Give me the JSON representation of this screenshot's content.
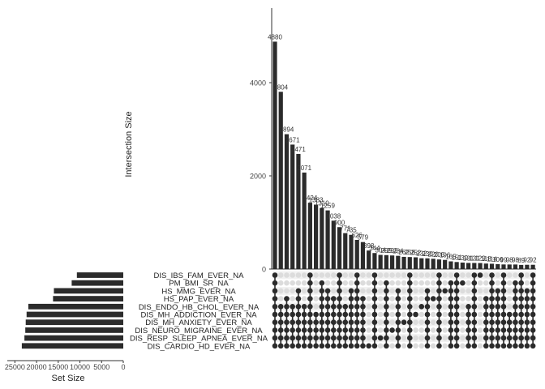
{
  "chart_data": {
    "type": "bar",
    "title": "",
    "intersection_ylabel": "Intersection Size",
    "set_size_xlabel": "Set Size",
    "intersection_yticks": [
      0,
      2000,
      4000
    ],
    "intersection_ylim": [
      0,
      5600
    ],
    "set_size_xticks": [
      25000,
      20000,
      15000,
      10000,
      5000,
      0
    ],
    "set_size_xlim": [
      0,
      26000
    ],
    "bar_color": "#2b2b2b",
    "sets": [
      {
        "name": "DIS_IBS_FAM_EVER_NA",
        "size": 10700
      },
      {
        "name": "PM_BMI_SR_NA",
        "size": 11900
      },
      {
        "name": "HS_MMG_EVER_NA",
        "size": 16000
      },
      {
        "name": "HS_PAP_EVER_NA",
        "size": 16200
      },
      {
        "name": "DIS_ENDO_HB_CHOL_EVER_NA",
        "size": 21900
      },
      {
        "name": "DIS_MH_ADDICTION_EVER_NA",
        "size": 22300
      },
      {
        "name": "DIS_MH_ANXIETY_EVER_NA",
        "size": 22500
      },
      {
        "name": "DIS_NEURO_MIGRAINE_EVER_NA",
        "size": 22600
      },
      {
        "name": "DIS_RESP_SLEEP_APNEA_EVER_NA",
        "size": 22800
      },
      {
        "name": "DIS_CARDIO_HD_EVER_NA",
        "size": 23400
      }
    ],
    "intersections": [
      {
        "label": "4880",
        "value": 4880,
        "sets": [
          0,
          1,
          2,
          3,
          4,
          5,
          6,
          7,
          8,
          9
        ]
      },
      {
        "label": "3804",
        "value": 3804,
        "sets": [
          4,
          5,
          6,
          7,
          8,
          9
        ]
      },
      {
        "label": "2894",
        "value": 2894,
        "sets": [
          3,
          4,
          5,
          6,
          7,
          8,
          9
        ]
      },
      {
        "label": "2671",
        "value": 2671,
        "sets": [
          4,
          5,
          6,
          7,
          8,
          9
        ]
      },
      {
        "label": "2471",
        "value": 2471,
        "sets": [
          2,
          3,
          4,
          5,
          6,
          7,
          8,
          9
        ]
      },
      {
        "label": "2071",
        "value": 2071,
        "sets": [
          4,
          5,
          6,
          7,
          8,
          9
        ]
      },
      {
        "label": "1424",
        "value": 1424,
        "sets": [
          0,
          1,
          2,
          3,
          4,
          5,
          6,
          7,
          8,
          9
        ]
      },
      {
        "label": "1383",
        "value": 1383,
        "sets": [
          5,
          6,
          7,
          8,
          9
        ]
      },
      {
        "label": "1310",
        "value": 1310,
        "sets": [
          1,
          2,
          3,
          4,
          5,
          6,
          7,
          8,
          9
        ]
      },
      {
        "label": "1259",
        "value": 1259,
        "sets": [
          2,
          3,
          4,
          5,
          6,
          7,
          8,
          9
        ]
      },
      {
        "label": "1038",
        "value": 1038,
        "sets": [
          3,
          4,
          5,
          6,
          7,
          8,
          9
        ]
      },
      {
        "label": "900",
        "value": 900,
        "sets": [
          0,
          1,
          2,
          3,
          4,
          5,
          6,
          7,
          8,
          9
        ]
      },
      {
        "label": "771",
        "value": 771,
        "sets": [
          4,
          5,
          6,
          7,
          8,
          9
        ]
      },
      {
        "label": "735",
        "value": 735,
        "sets": [
          2,
          3,
          4,
          5,
          6,
          7,
          8,
          9
        ]
      },
      {
        "label": "626",
        "value": 626,
        "sets": [
          0,
          1,
          2,
          3,
          4,
          5,
          6,
          7,
          8,
          9
        ]
      },
      {
        "label": "579",
        "value": 579,
        "sets": [
          3,
          4,
          5,
          6,
          7,
          8,
          9
        ]
      },
      {
        "label": "398",
        "value": 398,
        "sets": [
          9
        ]
      },
      {
        "label": "344",
        "value": 344,
        "sets": [
          0,
          1,
          2,
          3,
          4,
          5,
          6,
          7,
          8,
          9
        ]
      },
      {
        "label": "304",
        "value": 304,
        "sets": [
          8
        ]
      },
      {
        "label": "299",
        "value": 299,
        "sets": [
          1,
          2,
          3,
          4,
          5,
          6,
          7,
          8,
          9
        ]
      },
      {
        "label": "292",
        "value": 292,
        "sets": [
          7
        ]
      },
      {
        "label": "284",
        "value": 284,
        "sets": [
          2,
          3,
          4,
          5,
          6,
          7,
          8,
          9
        ]
      },
      {
        "label": "262",
        "value": 262,
        "sets": [
          6
        ]
      },
      {
        "label": "258",
        "value": 258,
        "sets": [
          0,
          1,
          2,
          3,
          4,
          5,
          6,
          7,
          8,
          9
        ]
      },
      {
        "label": "252",
        "value": 252,
        "sets": [
          5
        ]
      },
      {
        "label": "232",
        "value": 232,
        "sets": [
          4
        ]
      },
      {
        "label": "230",
        "value": 230,
        "sets": [
          2,
          3,
          4,
          5,
          6,
          7,
          8,
          9
        ]
      },
      {
        "label": "220",
        "value": 220,
        "sets": [
          3
        ]
      },
      {
        "label": "206",
        "value": 206,
        "sets": [
          0,
          1,
          2,
          3,
          4,
          5,
          6,
          7,
          8,
          9
        ]
      },
      {
        "label": "196",
        "value": 196,
        "sets": [
          2
        ]
      },
      {
        "label": "165",
        "value": 165,
        "sets": [
          1,
          2,
          3,
          4,
          5,
          6,
          7,
          8,
          9
        ]
      },
      {
        "label": "151",
        "value": 151,
        "sets": [
          0,
          1,
          2,
          3,
          4,
          5,
          6,
          7,
          8,
          9
        ]
      },
      {
        "label": "139",
        "value": 139,
        "sets": [
          1
        ]
      },
      {
        "label": "131",
        "value": 131,
        "sets": [
          4,
          5,
          6,
          7,
          8,
          9
        ]
      },
      {
        "label": "131",
        "value": 131,
        "sets": [
          0,
          1,
          2,
          3,
          4,
          5,
          6,
          7,
          8,
          9
        ]
      },
      {
        "label": "129",
        "value": 129,
        "sets": [
          0
        ]
      },
      {
        "label": "118",
        "value": 118,
        "sets": [
          3,
          4,
          5,
          6,
          7,
          8,
          9
        ]
      },
      {
        "label": "114",
        "value": 114,
        "sets": [
          0,
          1,
          2,
          3,
          4,
          5,
          6,
          7,
          8,
          9
        ]
      },
      {
        "label": "106",
        "value": 106,
        "sets": [
          2,
          3,
          4,
          5,
          6,
          7,
          8,
          9
        ]
      },
      {
        "label": "99",
        "value": 99,
        "sets": [
          0,
          1,
          2,
          3,
          4,
          5,
          6,
          7,
          8,
          9
        ]
      },
      {
        "label": "98",
        "value": 98,
        "sets": [
          5,
          6,
          7,
          8,
          9
        ]
      },
      {
        "label": "98",
        "value": 98,
        "sets": [
          1,
          2,
          3,
          4,
          5,
          6,
          7,
          8,
          9
        ]
      },
      {
        "label": "89",
        "value": 89,
        "sets": [
          0,
          1,
          2,
          3,
          4,
          5,
          6,
          7,
          8,
          9
        ]
      },
      {
        "label": "92",
        "value": 92,
        "sets": [
          2,
          3,
          4,
          5,
          6,
          7,
          8,
          9
        ]
      },
      {
        "label": "92",
        "value": 92,
        "sets": [
          0,
          1,
          2,
          3,
          4,
          5,
          6,
          7,
          8,
          9
        ]
      }
    ]
  }
}
